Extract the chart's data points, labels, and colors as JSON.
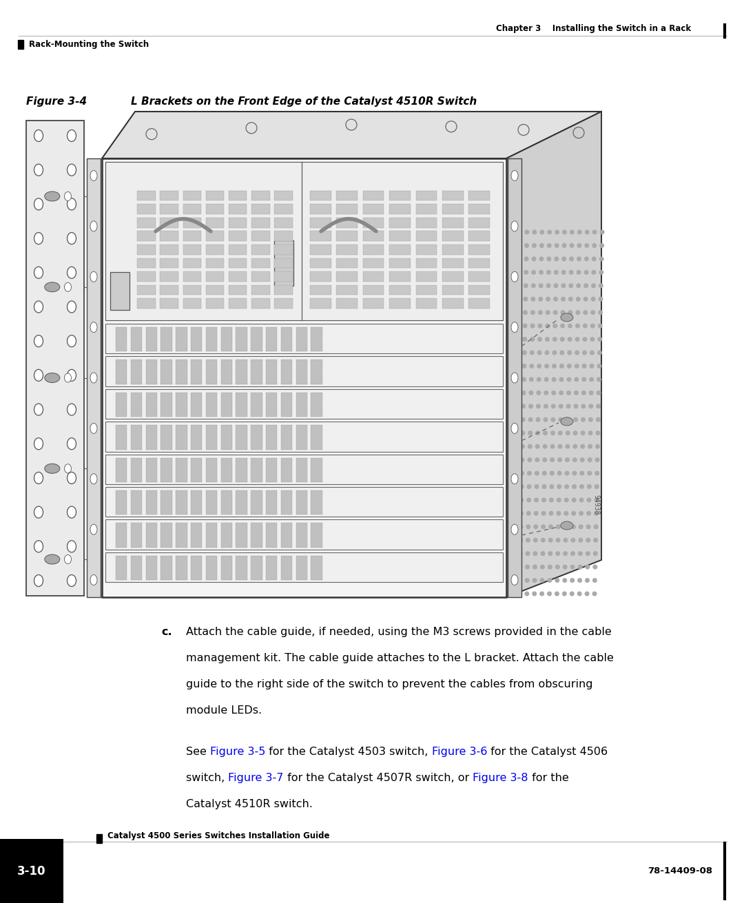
{
  "page_bg": "#ffffff",
  "header_chapter_text": "Chapter 3    Installing the Switch in a Rack",
  "header_section_text": "Rack-Mounting the Switch",
  "figure_caption_bold": "Figure 3-4",
  "figure_caption_rest": "        L Brackets on the Front Edge of the Catalyst 4510R Switch",
  "body_c_label": "c.",
  "body_para1": [
    "Attach the cable guide, if needed, using the M3 screws provided in the cable",
    "management kit. The cable guide attaches to the L bracket. Attach the cable",
    "guide to the right side of the switch to prevent the cables from obscuring",
    "module LEDs."
  ],
  "body_para2_l1": [
    [
      "See ",
      "#000000"
    ],
    [
      "Figure 3-5",
      "#0000ee"
    ],
    [
      " for the Catalyst 4503 switch, ",
      "#000000"
    ],
    [
      "Figure 3-6",
      "#0000ee"
    ],
    [
      " for the Catalyst 4506",
      "#000000"
    ]
  ],
  "body_para2_l2": [
    [
      "switch, ",
      "#000000"
    ],
    [
      "Figure 3-7",
      "#0000ee"
    ],
    [
      " for the Catalyst 4507R switch, or ",
      "#000000"
    ],
    [
      "Figure 3-8",
      "#0000ee"
    ],
    [
      " for the",
      "#000000"
    ]
  ],
  "body_para2_l3": "Catalyst 4510R switch.",
  "footer_guide": "Catalyst 4500 Series Switches Installation Guide",
  "footer_page": "3-10",
  "footer_docnum": "78-14409-08",
  "text_color": "#000000",
  "gray_color": "#bbbbbb"
}
